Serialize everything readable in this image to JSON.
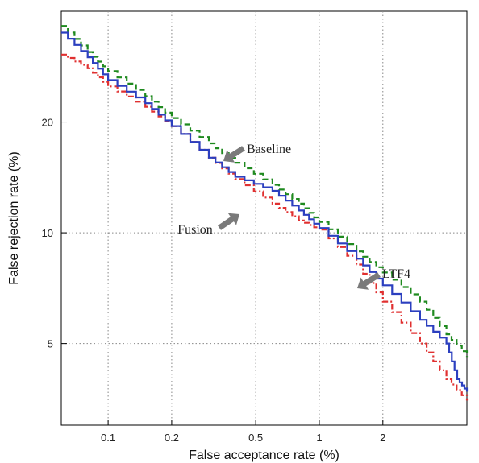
{
  "chart_data": {
    "type": "line",
    "xlabel": "False acceptance rate (%)",
    "ylabel": "False rejection rate (%)",
    "x_scale": "log",
    "y_scale": "log",
    "xlim": [
      0.06,
      5.0
    ],
    "ylim": [
      3.0,
      40.0
    ],
    "x_ticks": [
      0.1,
      0.2,
      0.5,
      1,
      2
    ],
    "x_tick_labels": [
      "0.1",
      "0.2",
      "0.5",
      "1",
      "2"
    ],
    "y_ticks": [
      5,
      10,
      20
    ],
    "y_tick_labels": [
      "5",
      "10",
      "20"
    ],
    "grid": true,
    "series": [
      {
        "name": "Baseline",
        "color": "#1f8a1f",
        "style": "dashed",
        "points": [
          [
            0.06,
            36.5
          ],
          [
            0.08,
            31.0
          ],
          [
            0.1,
            27.5
          ],
          [
            0.15,
            23.5
          ],
          [
            0.2,
            20.5
          ],
          [
            0.3,
            17.5
          ],
          [
            0.4,
            15.5
          ],
          [
            0.6,
            13.5
          ],
          [
            0.8,
            12.0
          ],
          [
            1.0,
            10.7
          ],
          [
            1.5,
            8.9
          ],
          [
            2.0,
            7.8
          ],
          [
            3.0,
            6.5
          ],
          [
            4.0,
            5.3
          ],
          [
            5.0,
            4.6
          ]
        ]
      },
      {
        "name": "LTF4",
        "color": "#2b3fbf",
        "style": "solid",
        "points": [
          [
            0.06,
            35.0
          ],
          [
            0.08,
            30.0
          ],
          [
            0.1,
            26.0
          ],
          [
            0.15,
            22.5
          ],
          [
            0.2,
            19.5
          ],
          [
            0.3,
            16.0
          ],
          [
            0.4,
            14.2
          ],
          [
            0.6,
            13.0
          ],
          [
            0.8,
            11.5
          ],
          [
            1.0,
            10.3
          ],
          [
            1.5,
            8.5
          ],
          [
            2.0,
            7.2
          ],
          [
            3.0,
            5.8
          ],
          [
            4.0,
            5.0
          ],
          [
            4.5,
            4.0
          ],
          [
            5.0,
            3.7
          ]
        ]
      },
      {
        "name": "Fusion",
        "color": "#e03030",
        "style": "dashdot",
        "points": [
          [
            0.06,
            30.5
          ],
          [
            0.08,
            28.0
          ],
          [
            0.1,
            25.0
          ],
          [
            0.15,
            22.0
          ],
          [
            0.2,
            19.5
          ],
          [
            0.3,
            16.0
          ],
          [
            0.4,
            14.0
          ],
          [
            0.6,
            12.0
          ],
          [
            0.8,
            10.8
          ],
          [
            1.0,
            10.2
          ],
          [
            1.5,
            8.2
          ],
          [
            2.0,
            6.5
          ],
          [
            3.0,
            5.0
          ],
          [
            4.0,
            4.0
          ],
          [
            5.0,
            3.5
          ]
        ]
      }
    ],
    "annotations": [
      {
        "text": "Baseline",
        "series": "Baseline",
        "at": [
          0.45,
          19.0
        ]
      },
      {
        "text": "Fusion",
        "series": "Fusion",
        "at": [
          0.58,
          11.5
        ]
      },
      {
        "text": "LTF4",
        "series": "LTF4",
        "at": [
          1.9,
          8.3
        ]
      }
    ]
  }
}
